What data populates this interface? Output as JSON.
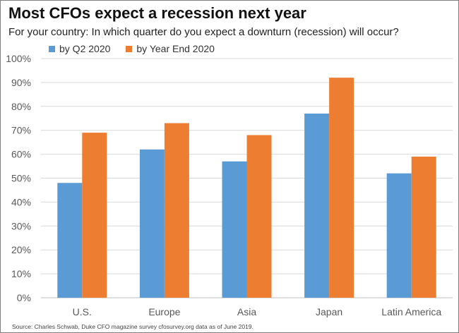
{
  "header": {
    "title": "Most CFOs expect a recession next year",
    "subtitle": "For your country: In which quarter do you expect a downturn (recession) will occur?"
  },
  "footer": {
    "source": "Source: Charles Schwab, Duke CFO magazine survey cfosurvey.org data as of June 2019."
  },
  "chart_data": {
    "type": "bar",
    "title": "Most CFOs expect a recession next year",
    "subtitle": "For your country: In which quarter do you expect a downturn (recession) will occur?",
    "categories": [
      "U.S.",
      "Europe",
      "Asia",
      "Japan",
      "Latin America"
    ],
    "series": [
      {
        "name": "by Q2 2020",
        "color": "#5b9bd5",
        "values": [
          48,
          62,
          57,
          77,
          52
        ]
      },
      {
        "name": "by Year End 2020",
        "color": "#ed7d31",
        "values": [
          69,
          73,
          68,
          92,
          59
        ]
      }
    ],
    "y_ticks": [
      "0%",
      "10%",
      "20%",
      "30%",
      "40%",
      "50%",
      "60%",
      "70%",
      "80%",
      "90%",
      "100%"
    ],
    "ylim": [
      0,
      100
    ],
    "y_unit": "%",
    "grid": true,
    "legend_position": "top-left",
    "xlabel": "",
    "ylabel": ""
  }
}
